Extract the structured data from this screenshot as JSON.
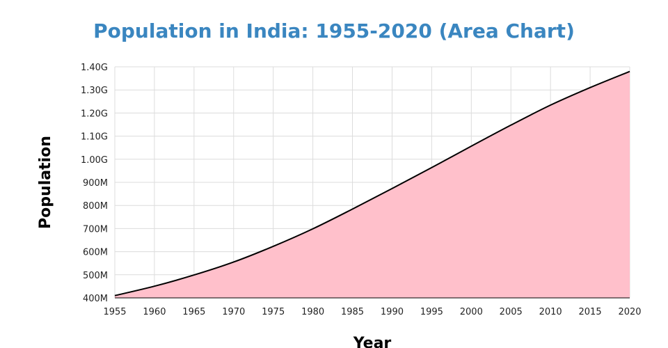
{
  "title": "Population in India: 1955-2020 (Area Chart)",
  "colors": {
    "title": "#3a86c0",
    "area_fill": "#ffc0cb",
    "line": "#000000",
    "grid": "#dcdcdc"
  },
  "chart_data": {
    "type": "area",
    "title": "Population in India: 1955-2020 (Area Chart)",
    "xlabel": "Year",
    "ylabel": "Population",
    "grid": true,
    "legend": "none",
    "x": [
      1955,
      1960,
      1965,
      1970,
      1975,
      1980,
      1985,
      1990,
      1995,
      2000,
      2005,
      2010,
      2015,
      2020
    ],
    "values": [
      409880000,
      450550000,
      499120000,
      555190000,
      623100000,
      698950000,
      784360000,
      873280000,
      963920000,
      1056580000,
      1147610000,
      1234280000,
      1310150000,
      1380000000
    ],
    "xlim": [
      1955,
      2020
    ],
    "ylim": [
      400000000,
      1400000000
    ],
    "x_ticks": [
      1955,
      1960,
      1965,
      1970,
      1975,
      1980,
      1985,
      1990,
      1995,
      2000,
      2005,
      2010,
      2015,
      2020
    ],
    "x_tick_labels": [
      "1955",
      "1960",
      "1965",
      "1970",
      "1975",
      "1980",
      "1985",
      "1990",
      "1995",
      "2000",
      "2005",
      "2010",
      "2015",
      "2020"
    ],
    "y_ticks": [
      400000000,
      500000000,
      600000000,
      700000000,
      800000000,
      900000000,
      1000000000,
      1100000000,
      1200000000,
      1300000000,
      1400000000
    ],
    "y_tick_labels": [
      "400M",
      "500M",
      "600M",
      "700M",
      "800M",
      "900M",
      "1.00G",
      "1.10G",
      "1.20G",
      "1.30G",
      "1.40G"
    ]
  }
}
